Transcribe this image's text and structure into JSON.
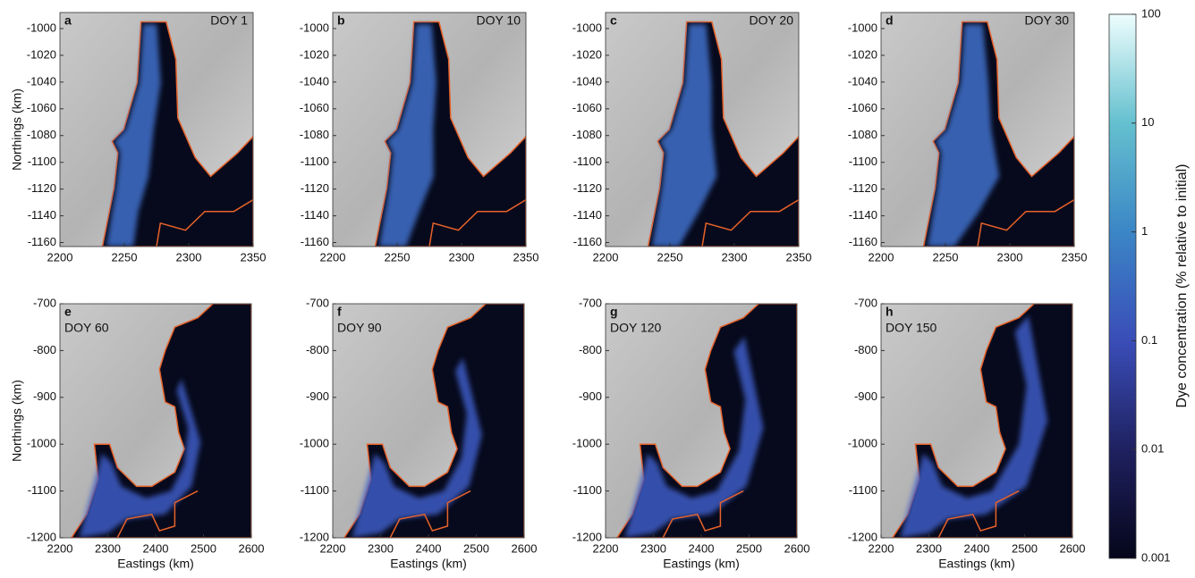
{
  "chart_data": [
    {
      "type": "map",
      "label": "a",
      "title": "DOY 1",
      "xlim": [
        2200,
        2350
      ],
      "ylim": [
        -1163,
        -988
      ],
      "xticks": [
        2200,
        2250,
        2300,
        2350
      ],
      "yticks": [
        -1000,
        -1020,
        -1040,
        -1060,
        -1080,
        -1100,
        -1120,
        -1140,
        -1160
      ],
      "ylabel": "Northings (km)"
    },
    {
      "type": "map",
      "label": "b",
      "title": "DOY 10",
      "xlim": [
        2200,
        2350
      ],
      "ylim": [
        -1163,
        -988
      ],
      "xticks": [
        2200,
        2250,
        2300,
        2350
      ],
      "yticks": [
        -1000,
        -1020,
        -1040,
        -1060,
        -1080,
        -1100,
        -1120,
        -1140,
        -1160
      ]
    },
    {
      "type": "map",
      "label": "c",
      "title": "DOY 20",
      "xlim": [
        2200,
        2350
      ],
      "ylim": [
        -1163,
        -988
      ],
      "xticks": [
        2200,
        2250,
        2300,
        2350
      ],
      "yticks": [
        -1000,
        -1020,
        -1040,
        -1060,
        -1080,
        -1100,
        -1120,
        -1140,
        -1160
      ]
    },
    {
      "type": "map",
      "label": "d",
      "title": "DOY 30",
      "xlim": [
        2200,
        2350
      ],
      "ylim": [
        -1163,
        -988
      ],
      "xticks": [
        2200,
        2250,
        2300,
        2350
      ],
      "yticks": [
        -1000,
        -1020,
        -1040,
        -1060,
        -1080,
        -1100,
        -1120,
        -1140,
        -1160
      ]
    },
    {
      "type": "map",
      "label": "e",
      "title": "DOY 60",
      "xlim": [
        2200,
        2600
      ],
      "ylim": [
        -1200,
        -700
      ],
      "xticks": [
        2200,
        2300,
        2400,
        2500,
        2600
      ],
      "yticks": [
        -700,
        -800,
        -900,
        -1000,
        -1100,
        -1200
      ],
      "xlabel": "Eastings (km)",
      "ylabel": "Northings (km)"
    },
    {
      "type": "map",
      "label": "f",
      "title": "DOY 90",
      "xlim": [
        2200,
        2600
      ],
      "ylim": [
        -1200,
        -700
      ],
      "xticks": [
        2200,
        2300,
        2400,
        2500,
        2600
      ],
      "yticks": [
        -700,
        -800,
        -900,
        -1000,
        -1100,
        -1200
      ],
      "xlabel": "Eastings (km)"
    },
    {
      "type": "map",
      "label": "g",
      "title": "DOY 120",
      "xlim": [
        2200,
        2600
      ],
      "ylim": [
        -1200,
        -700
      ],
      "xticks": [
        2200,
        2300,
        2400,
        2500,
        2600
      ],
      "yticks": [
        -700,
        -800,
        -900,
        -1000,
        -1100,
        -1200
      ],
      "xlabel": "Eastings (km)"
    },
    {
      "type": "map",
      "label": "h",
      "title": "DOY 150",
      "xlim": [
        2200,
        2600
      ],
      "ylim": [
        -1200,
        -700
      ],
      "xticks": [
        2200,
        2300,
        2400,
        2500,
        2600
      ],
      "yticks": [
        -700,
        -800,
        -900,
        -1000,
        -1100,
        -1200
      ],
      "xlabel": "Eastings (km)"
    },
    {
      "type": "colorbar",
      "ylabel": "Dye concentration (% relative to initial)",
      "ylim": [
        0.001,
        100
      ],
      "yticks": [
        0.001,
        0.01,
        0.1,
        1,
        10,
        100
      ],
      "log_scale": true
    }
  ]
}
